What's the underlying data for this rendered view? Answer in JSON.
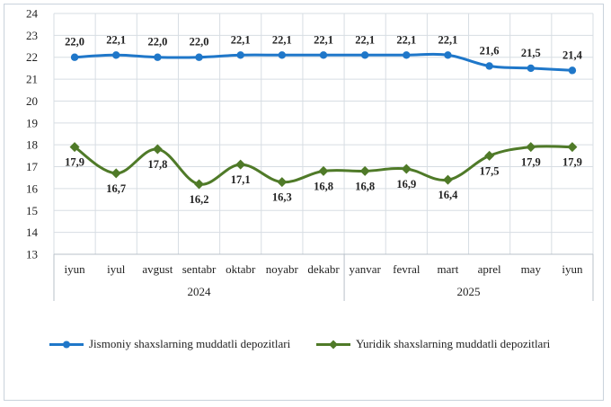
{
  "chart_data": {
    "type": "line",
    "categories": [
      "iyun",
      "iyul",
      "avgust",
      "sentabr",
      "oktabr",
      "noyabr",
      "dekabr",
      "yanvar",
      "fevral",
      "mart",
      "aprel",
      "may",
      "iyun"
    ],
    "year_groups": [
      {
        "label": "2024",
        "start": 0,
        "end": 6
      },
      {
        "label": "2025",
        "start": 7,
        "end": 12
      }
    ],
    "ylim": [
      13,
      24
    ],
    "yticks": [
      13,
      14,
      15,
      16,
      17,
      18,
      19,
      20,
      21,
      22,
      23,
      24
    ],
    "grid": true,
    "series": [
      {
        "name": "Jismoniy shaxslarning muddatli depozitlari",
        "color": "#1f77c9",
        "marker": "circle",
        "values": [
          22.0,
          22.1,
          22.0,
          22.0,
          22.1,
          22.1,
          22.1,
          22.1,
          22.1,
          22.1,
          21.6,
          21.5,
          21.4
        ],
        "labels": [
          "22,0",
          "22,1",
          "22,0",
          "22,0",
          "22,1",
          "22,1",
          "22,1",
          "22,1",
          "22,1",
          "22,1",
          "21,6",
          "21,5",
          "21,4"
        ]
      },
      {
        "name": "Yuridik shaxslarning muddatli depozitlari",
        "color": "#4f7a28",
        "marker": "diamond",
        "values": [
          17.9,
          16.7,
          17.8,
          16.2,
          17.1,
          16.3,
          16.8,
          16.8,
          16.9,
          16.4,
          17.5,
          17.9,
          17.9
        ],
        "labels": [
          "17,9",
          "16,7",
          "17,8",
          "16,2",
          "17,1",
          "16,3",
          "16,8",
          "16,8",
          "16,9",
          "16,4",
          "17,5",
          "17,9",
          "17,9"
        ]
      }
    ],
    "legend": "bottom"
  }
}
